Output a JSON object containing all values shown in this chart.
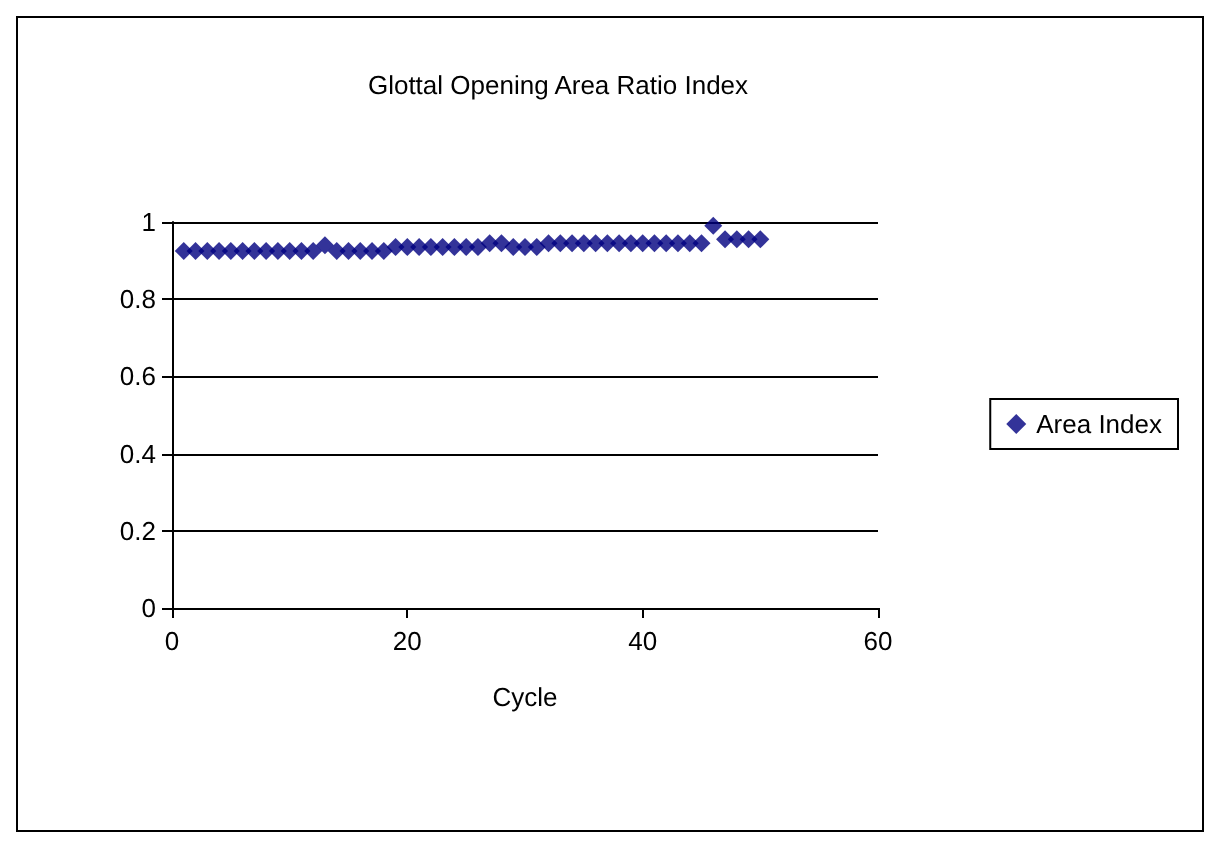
{
  "chart_data": {
    "type": "scatter",
    "title": "Glottal Opening Area Ratio Index",
    "xlabel": "Cycle",
    "x": [
      1,
      2,
      3,
      4,
      5,
      6,
      7,
      8,
      9,
      10,
      11,
      12,
      13,
      14,
      15,
      16,
      17,
      18,
      19,
      20,
      21,
      22,
      23,
      24,
      25,
      26,
      27,
      28,
      29,
      30,
      31,
      32,
      33,
      34,
      35,
      36,
      37,
      38,
      39,
      40,
      41,
      42,
      43,
      44,
      45,
      46,
      47,
      48,
      49,
      50
    ],
    "series": [
      {
        "name": "Area Index",
        "color": "#000080",
        "values": [
          0.925,
          0.925,
          0.925,
          0.925,
          0.925,
          0.925,
          0.925,
          0.925,
          0.925,
          0.925,
          0.925,
          0.925,
          0.94,
          0.925,
          0.925,
          0.925,
          0.925,
          0.925,
          0.935,
          0.935,
          0.935,
          0.935,
          0.935,
          0.935,
          0.935,
          0.935,
          0.945,
          0.945,
          0.935,
          0.935,
          0.935,
          0.945,
          0.945,
          0.945,
          0.945,
          0.945,
          0.945,
          0.945,
          0.945,
          0.945,
          0.945,
          0.945,
          0.945,
          0.945,
          0.945,
          0.99,
          0.955,
          0.955,
          0.955,
          0.955
        ]
      }
    ],
    "xlim": [
      0,
      60
    ],
    "xticks": [
      0,
      20,
      40,
      60
    ],
    "ylim": [
      0,
      1
    ],
    "yticks": [
      0,
      0.2,
      0.4,
      0.6,
      0.8,
      1
    ],
    "grid": "y",
    "legend": "right",
    "marker": "diamond"
  }
}
